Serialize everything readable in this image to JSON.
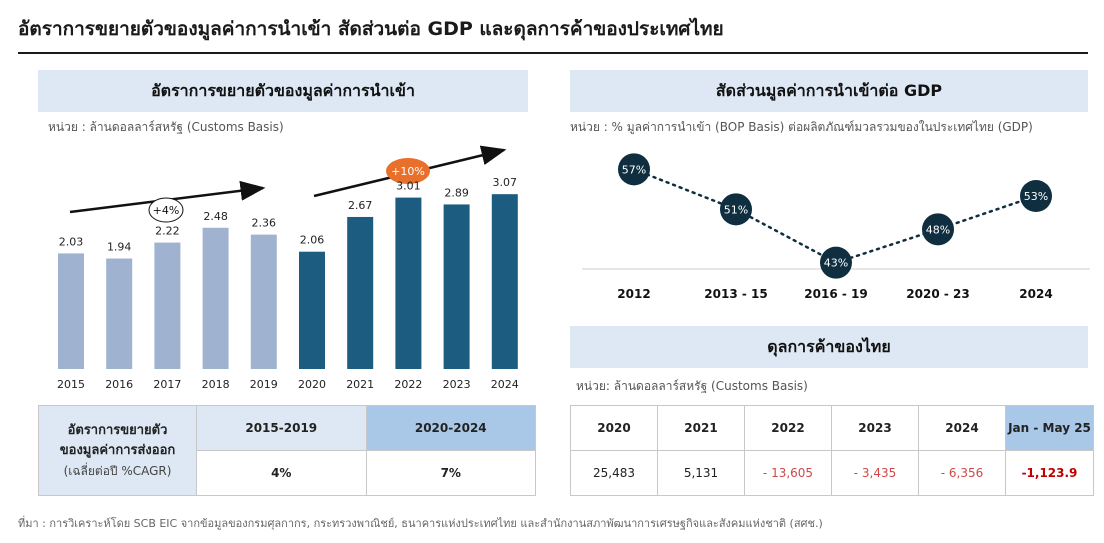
{
  "page_title": "อัตราการขยายตัวของมูลค่าการนำเข้า สัดส่วนต่อ GDP และดุลการค้าของประเทศไทย",
  "colors": {
    "bar_light": "#9fb2d0",
    "bar_dark": "#1b5c80",
    "header_bg": "#dde8f4",
    "header_dark": "#a9c8e8",
    "bubble": "#0f2f40",
    "badge_orange": "#e8702a",
    "negative": "#d04848",
    "negative_strong": "#c00000"
  },
  "chart_data": [
    {
      "type": "bar",
      "title": "อัตราการขยายตัวของมูลค่าการนำเข้า",
      "unit": "หน่วย : ล้านดอลลาร์สหรัฐ (Customs Basis)",
      "categories": [
        "2015",
        "2016",
        "2017",
        "2018",
        "2019",
        "2020",
        "2021",
        "2022",
        "2023",
        "2024"
      ],
      "values": [
        2.03,
        1.94,
        2.22,
        2.48,
        2.36,
        2.06,
        2.67,
        3.01,
        2.89,
        3.07
      ],
      "value_labels": [
        "2.03",
        "1.94",
        "2.22",
        "2.48",
        "2.36",
        "2.06",
        "2.67",
        "3.01",
        "2.89",
        "3.07"
      ],
      "annotations": [
        {
          "text": "+4%",
          "period": "2015-2019"
        },
        {
          "text": "+10%",
          "period": "2020-2024"
        }
      ],
      "ylim": [
        0,
        3.6
      ]
    },
    {
      "type": "line",
      "title": "สัดส่วนมูลค่าการนำเข้าต่อ GDP",
      "unit": "หน่วย : % มูลค่าการนำเข้า (BOP Basis) ต่อผลิตภัณฑ์มวลรวมของในประเทศไทย  (GDP)",
      "categories": [
        "2012",
        "2013 - 15",
        "2016 - 19",
        "2020 - 23",
        "2024"
      ],
      "values": [
        57,
        51,
        43,
        48,
        53
      ],
      "value_labels": [
        "57%",
        "51%",
        "43%",
        "48%",
        "53%"
      ],
      "ylim": [
        38,
        62
      ]
    }
  ],
  "cagr_table": {
    "label_line1": "อัตราการขยายตัว",
    "label_line2": "ของมูลค่าการส่งออก",
    "label_line3": "(เฉลี่ยต่อปี %CAGR)",
    "headers": [
      "2015-2019",
      "2020-2024"
    ],
    "values": [
      "4%",
      "7%"
    ]
  },
  "trade_balance": {
    "title": "ดุลการค้าของไทย",
    "unit": "หน่วย: ล้านดอลลาร์สหรัฐ (Customs Basis)",
    "headers": [
      "2020",
      "2021",
      "2022",
      "2023",
      "2024",
      "Jan - May 25"
    ],
    "values": [
      "25,483",
      "5,131",
      "- 13,605",
      "- 3,435",
      "- 6,356",
      "-1,123.9"
    ]
  },
  "source": "ที่มา : การวิเคราะห์โดย SCB EIC จากข้อมูลของกรมศุลกากร, กระทรวงพาณิชย์, ธนาคารแห่งประเทศไทย และสำนักงานสภาพัฒนาการเศรษฐกิจและสังคมแห่งชาติ (สศช.)"
}
